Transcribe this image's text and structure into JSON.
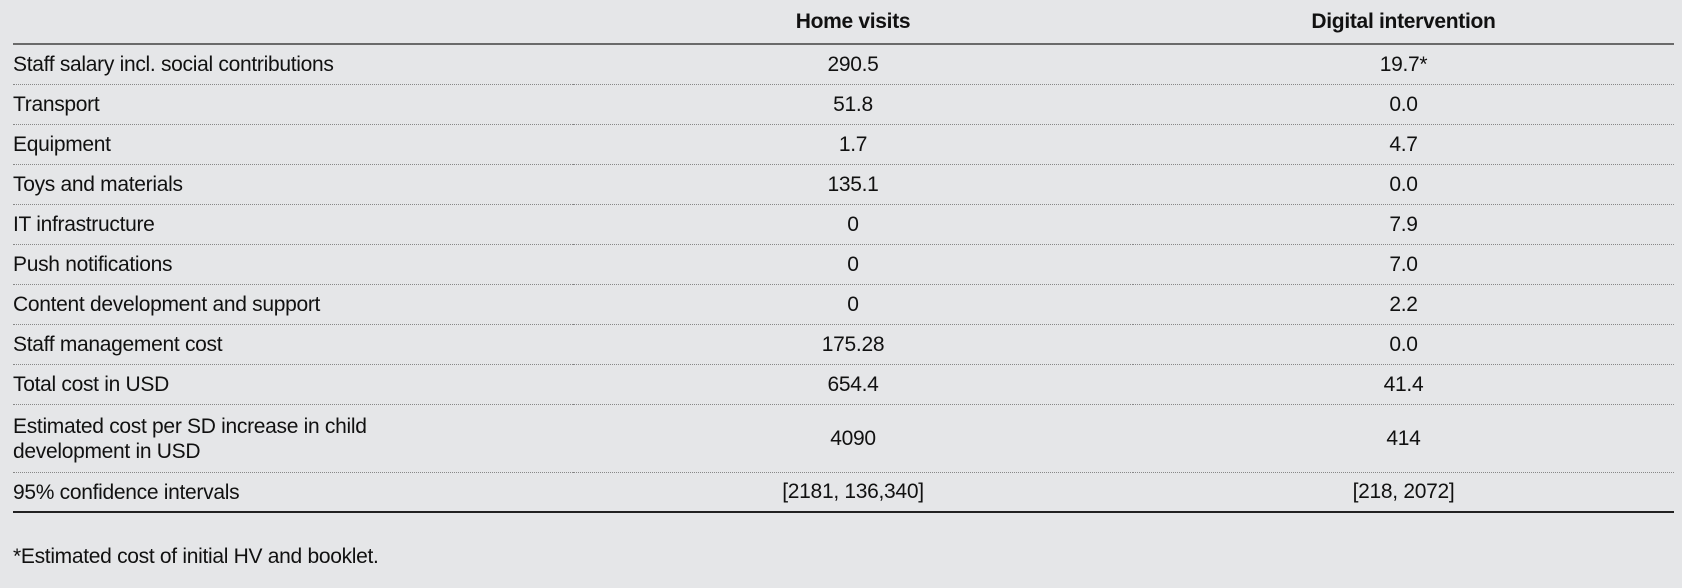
{
  "table": {
    "headers": [
      "",
      "Home visits",
      "Digital intervention"
    ],
    "rows": [
      [
        "Staff salary incl. social contributions",
        "290.5",
        "19.7*"
      ],
      [
        "Transport",
        "51.8",
        "0.0"
      ],
      [
        "Equipment",
        "1.7",
        "4.7"
      ],
      [
        "Toys and materials",
        "135.1",
        "0.0"
      ],
      [
        "IT infrastructure",
        "0",
        "7.9"
      ],
      [
        "Push notifications",
        "0",
        "7.0"
      ],
      [
        "Content development and support",
        "0",
        "2.2"
      ],
      [
        "Staff management cost",
        "175.28",
        "0.0"
      ],
      [
        "Total cost in USD",
        "654.4",
        "41.4"
      ],
      [
        "Estimated cost per SD increase in child development in USD",
        "4090",
        "414"
      ],
      [
        "95% confidence intervals",
        "[2181, 136,340]",
        "[218, 2072]"
      ]
    ]
  },
  "footnote": "*Estimated cost of initial HV and booklet."
}
